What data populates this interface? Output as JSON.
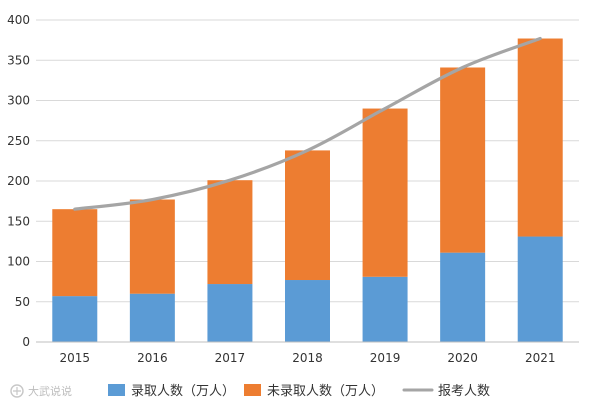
{
  "chart_data": {
    "type": "bar",
    "stacked": true,
    "categories": [
      "2015",
      "2016",
      "2017",
      "2018",
      "2019",
      "2020",
      "2021"
    ],
    "series": [
      {
        "name": "录取人数（万人）",
        "kind": "bar",
        "color": "#5B9BD5",
        "values": [
          57,
          60,
          72,
          77,
          81,
          111,
          131
        ]
      },
      {
        "name": "未录取人数（万人）",
        "kind": "bar",
        "color": "#ED7D31",
        "values": [
          108,
          117,
          129,
          161,
          209,
          230,
          246
        ]
      },
      {
        "name": "报考人数",
        "kind": "line",
        "color": "#A5A5A5",
        "values": [
          165,
          177,
          201,
          238,
          290,
          341,
          377
        ]
      }
    ],
    "ylim": [
      0,
      400
    ],
    "yticks": [
      "0",
      "50",
      "100",
      "150",
      "200",
      "250",
      "300",
      "350",
      "400"
    ],
    "grid": true,
    "legend_position": "bottom"
  },
  "watermark": {
    "text": "大武说说"
  }
}
